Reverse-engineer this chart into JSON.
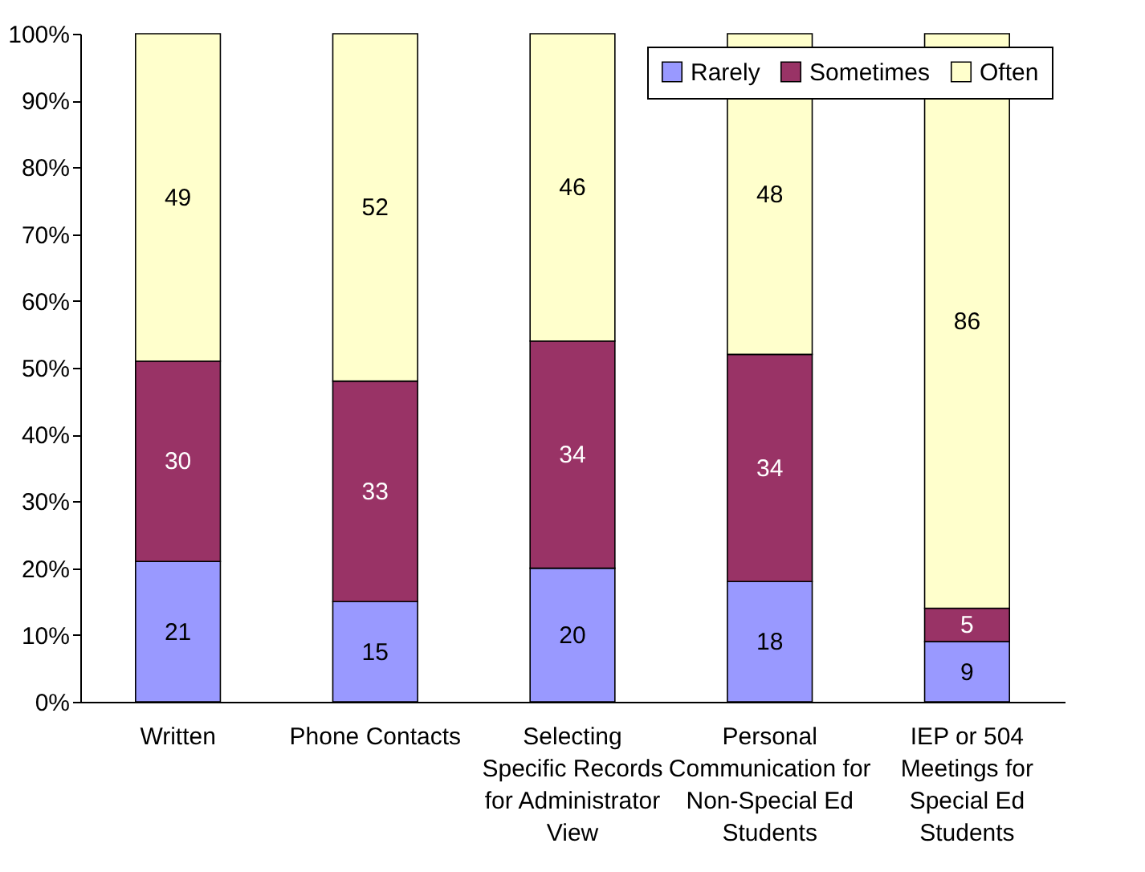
{
  "chart_data": {
    "type": "bar",
    "stacked": true,
    "categories": [
      "Written",
      "Phone Contacts",
      "Selecting Specific Records for Administrator View",
      "Personal Communication for Non-Special Ed Students",
      "IEP or 504 Meetings for Special Ed Students"
    ],
    "series": [
      {
        "name": "Rarely",
        "color": "#9999ff",
        "values": [
          21,
          15,
          20,
          18,
          9
        ]
      },
      {
        "name": "Sometimes",
        "color": "#993366",
        "values": [
          30,
          33,
          34,
          34,
          5
        ]
      },
      {
        "name": "Often",
        "color": "#ffffcc",
        "values": [
          49,
          52,
          46,
          48,
          86
        ]
      }
    ],
    "ylim": [
      0,
      100
    ],
    "yticks": [
      {
        "value": 0,
        "label": "0%"
      },
      {
        "value": 10,
        "label": "10%"
      },
      {
        "value": 20,
        "label": "20%"
      },
      {
        "value": 30,
        "label": "30%"
      },
      {
        "value": 40,
        "label": "40%"
      },
      {
        "value": 50,
        "label": "50%"
      },
      {
        "value": 60,
        "label": "60%"
      },
      {
        "value": 70,
        "label": "70%"
      },
      {
        "value": 80,
        "label": "80%"
      },
      {
        "value": 90,
        "label": "90%"
      },
      {
        "value": 100,
        "label": "100%"
      }
    ],
    "data_labels": true,
    "legend": "top right",
    "grid": false
  }
}
